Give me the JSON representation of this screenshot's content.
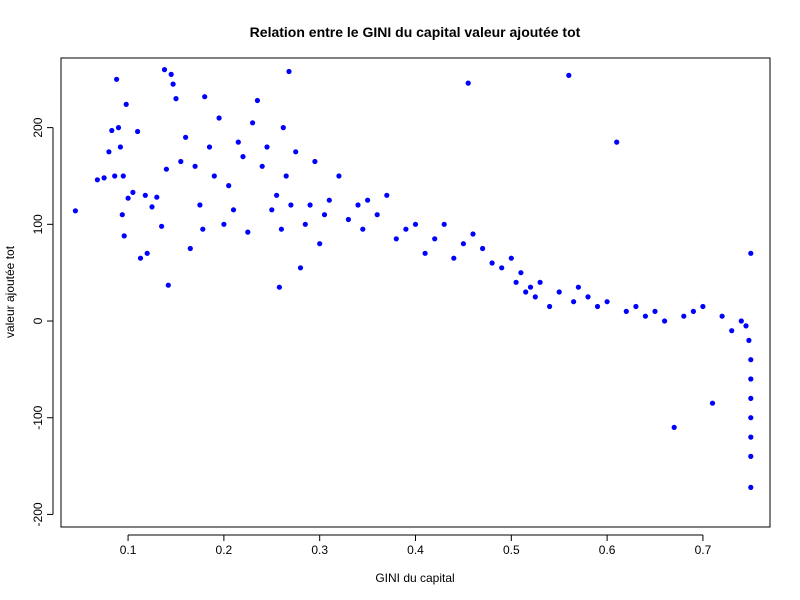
{
  "chart_data": {
    "type": "scatter",
    "title": "Relation entre le GINI du capital valeur ajoutée tot",
    "xlabel": "GINI du capital",
    "ylabel": "valeur ajoutée tot",
    "xlim": [
      0.03,
      0.77
    ],
    "ylim": [
      -213,
      272
    ],
    "x_ticks": [
      0.1,
      0.2,
      0.3,
      0.4,
      0.5,
      0.6,
      0.7
    ],
    "x_tick_labels": [
      "0.1",
      "0.2",
      "0.3",
      "0.4",
      "0.5",
      "0.6",
      "0.7"
    ],
    "y_ticks": [
      -200,
      -100,
      0,
      100,
      200
    ],
    "y_tick_labels": [
      "-200",
      "-100",
      "0",
      "100",
      "200"
    ],
    "grid": false,
    "legend": "none",
    "point_color": "#0000ff",
    "series": [
      {
        "x": [
          0.045,
          0.068,
          0.075,
          0.08,
          0.083,
          0.086,
          0.088,
          0.09,
          0.092,
          0.094,
          0.095,
          0.096,
          0.098,
          0.1,
          0.105,
          0.11,
          0.113,
          0.118,
          0.12,
          0.125,
          0.13,
          0.135,
          0.138,
          0.14,
          0.142,
          0.145,
          0.147,
          0.15,
          0.155,
          0.16,
          0.165,
          0.17,
          0.175,
          0.178,
          0.18,
          0.185,
          0.19,
          0.195,
          0.2,
          0.205,
          0.21,
          0.215,
          0.22,
          0.225,
          0.23,
          0.235,
          0.24,
          0.245,
          0.25,
          0.255,
          0.258,
          0.26,
          0.262,
          0.265,
          0.268,
          0.27,
          0.275,
          0.28,
          0.285,
          0.29,
          0.295,
          0.3,
          0.305,
          0.31,
          0.32,
          0.33,
          0.34,
          0.345,
          0.35,
          0.36,
          0.37,
          0.38,
          0.39,
          0.4,
          0.41,
          0.42,
          0.43,
          0.44,
          0.45,
          0.455,
          0.46,
          0.47,
          0.48,
          0.49,
          0.5,
          0.505,
          0.51,
          0.515,
          0.52,
          0.525,
          0.53,
          0.54,
          0.55,
          0.56,
          0.565,
          0.57,
          0.58,
          0.59,
          0.6,
          0.61,
          0.62,
          0.63,
          0.64,
          0.65,
          0.66,
          0.67,
          0.68,
          0.69,
          0.7,
          0.71,
          0.72,
          0.73,
          0.74,
          0.745,
          0.748,
          0.75,
          0.75,
          0.75,
          0.75,
          0.75,
          0.75,
          0.75,
          0.75
        ],
        "y": [
          114,
          146,
          148,
          175,
          197,
          150,
          250,
          200,
          180,
          110,
          150,
          88,
          224,
          127,
          133,
          196,
          65,
          130,
          70,
          118,
          128,
          98,
          260,
          157,
          37,
          255,
          245,
          230,
          165,
          190,
          75,
          160,
          120,
          95,
          232,
          180,
          150,
          210,
          100,
          140,
          115,
          185,
          170,
          92,
          205,
          228,
          160,
          180,
          115,
          130,
          35,
          95,
          200,
          150,
          258,
          120,
          175,
          55,
          100,
          120,
          165,
          80,
          110,
          125,
          150,
          105,
          120,
          95,
          125,
          110,
          130,
          85,
          95,
          100,
          70,
          85,
          100,
          65,
          80,
          246,
          90,
          75,
          60,
          55,
          65,
          40,
          50,
          30,
          35,
          25,
          40,
          15,
          30,
          254,
          20,
          35,
          25,
          15,
          20,
          185,
          10,
          15,
          5,
          10,
          0,
          -110,
          5,
          10,
          15,
          -85,
          5,
          -10,
          0,
          -5,
          -20,
          -40,
          -60,
          -80,
          -100,
          -120,
          -140,
          -172,
          70
        ]
      }
    ]
  }
}
